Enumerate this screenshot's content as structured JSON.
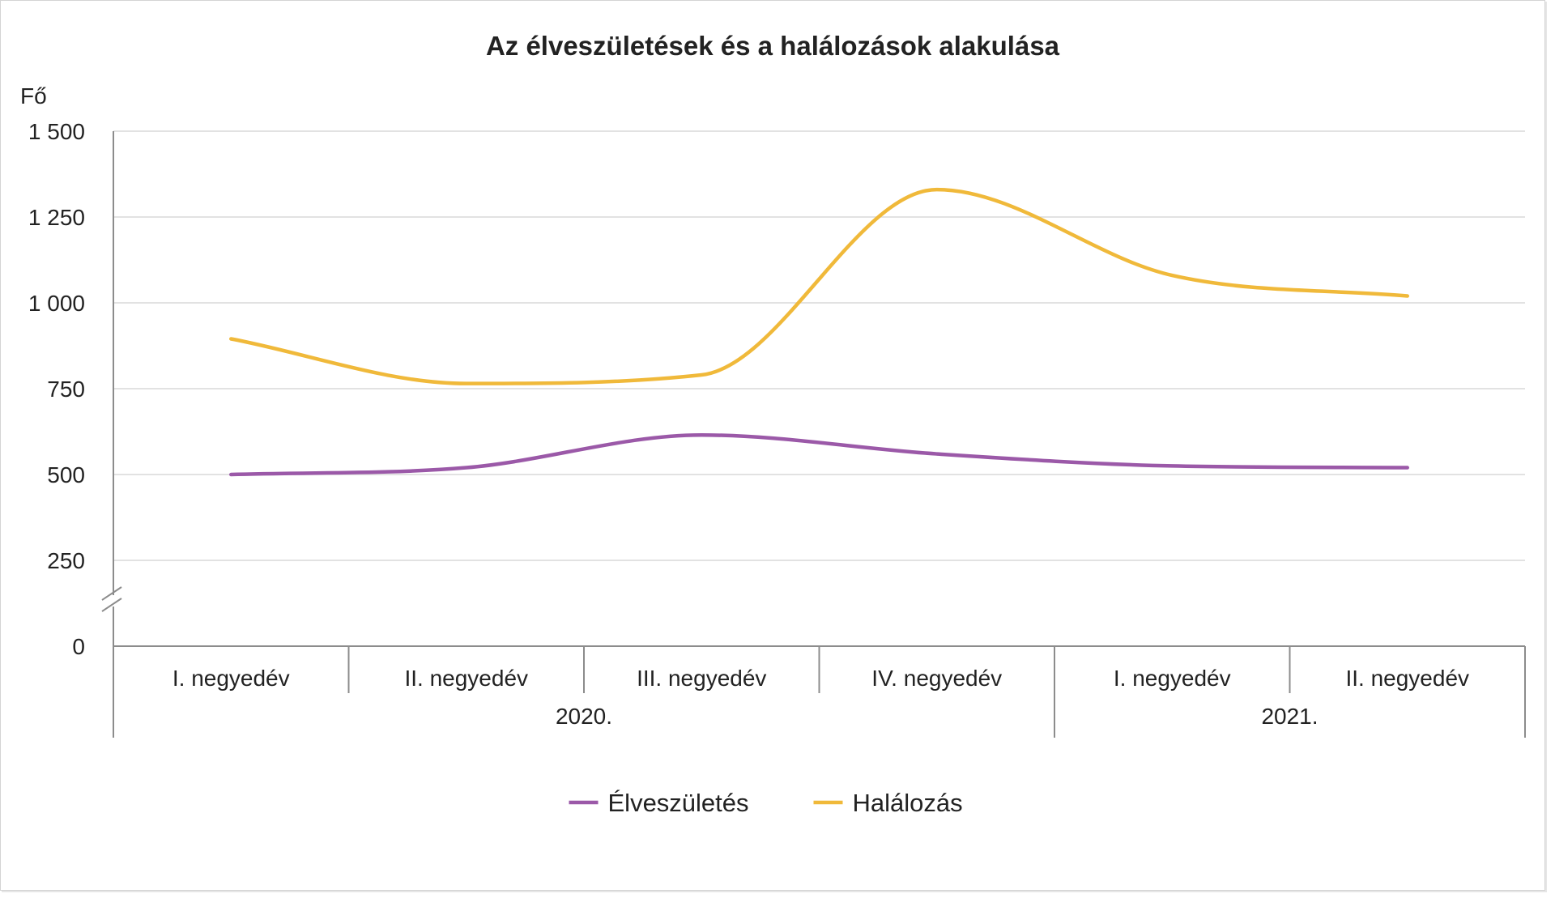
{
  "chart_data": {
    "type": "line",
    "title": "Az élveszületések és a halálozások alakulása",
    "ylabel": "Fő",
    "xlabel": "",
    "ylim": [
      0,
      1500
    ],
    "yticks": [
      0,
      250,
      500,
      750,
      1000,
      1250,
      1500
    ],
    "ytick_labels": [
      "0",
      "250",
      "500",
      "750",
      "1 000",
      "1 250",
      "1 500"
    ],
    "y_axis_break": true,
    "grid": true,
    "smooth": true,
    "categories": [
      "I. negyedév",
      "II. negyedév",
      "III. negyedév",
      "IV. negyedév",
      "I. negyedév",
      "II. negyedév"
    ],
    "groups": [
      {
        "label": "2020.",
        "span": 4
      },
      {
        "label": "2021.",
        "span": 2
      }
    ],
    "series": [
      {
        "name": "Élveszületés",
        "color": "#9b59a8",
        "values": [
          500,
          520,
          615,
          560,
          525,
          520
        ]
      },
      {
        "name": "Halálozás",
        "color": "#f0b93a",
        "values": [
          895,
          765,
          790,
          1330,
          1080,
          1020
        ]
      }
    ],
    "legend_position": "bottom"
  }
}
